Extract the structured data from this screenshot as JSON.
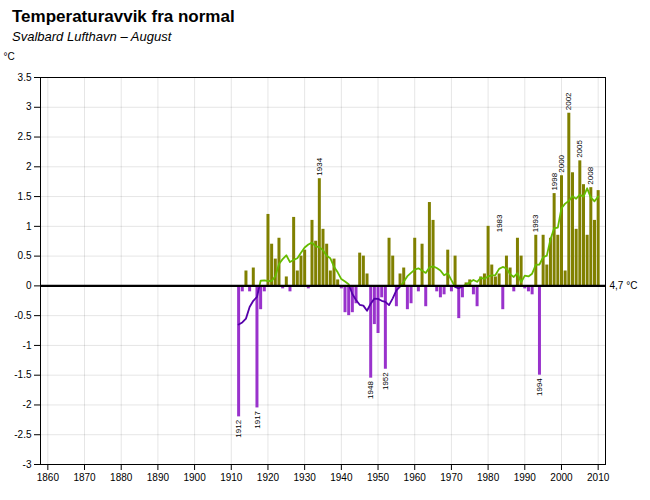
{
  "chart_data": {
    "type": "bar",
    "title": "Temperaturavvik fra normal",
    "subtitle": "Svalbard Lufthavn – August",
    "y_label": "°C",
    "x": [
      1912,
      1913,
      1914,
      1915,
      1916,
      1917,
      1918,
      1919,
      1920,
      1921,
      1922,
      1923,
      1924,
      1925,
      1926,
      1927,
      1928,
      1929,
      1930,
      1931,
      1932,
      1933,
      1934,
      1935,
      1936,
      1937,
      1938,
      1939,
      1940,
      1941,
      1942,
      1943,
      1944,
      1945,
      1946,
      1947,
      1948,
      1949,
      1950,
      1951,
      1952,
      1953,
      1954,
      1955,
      1956,
      1957,
      1958,
      1959,
      1960,
      1961,
      1962,
      1963,
      1964,
      1965,
      1966,
      1967,
      1968,
      1969,
      1970,
      1971,
      1972,
      1973,
      1974,
      1975,
      1976,
      1977,
      1978,
      1979,
      1980,
      1981,
      1982,
      1983,
      1984,
      1985,
      1986,
      1987,
      1988,
      1989,
      1990,
      1991,
      1992,
      1993,
      1994,
      1995,
      1996,
      1997,
      1998,
      1999,
      2000,
      2001,
      2002,
      2003,
      2004,
      2005,
      2006,
      2007,
      2008,
      2009,
      2010
    ],
    "xlim": [
      1858,
      2012
    ],
    "xticks": [
      1860,
      1870,
      1880,
      1890,
      1900,
      1910,
      1920,
      1930,
      1940,
      1950,
      1960,
      1970,
      1980,
      1990,
      2000,
      2010
    ],
    "ylim": [
      -3.0,
      3.5
    ],
    "yticks": [
      -3.0,
      -2.5,
      -2.0,
      -1.5,
      -1.0,
      -0.5,
      0.0,
      0.5,
      1.0,
      1.5,
      2.0,
      2.5,
      3.0,
      3.5
    ],
    "grid": true,
    "series": [
      {
        "type": "bar",
        "values": [
          -2.2,
          -0.1,
          0.25,
          -0.1,
          0.3,
          -2.05,
          -0.4,
          -0.1,
          1.2,
          0.7,
          0.45,
          0.8,
          -0.05,
          0.15,
          -0.1,
          1.15,
          0.25,
          0.5,
          0.6,
          -0.05,
          1.1,
          0.75,
          1.8,
          0.95,
          0.7,
          0.25,
          0.45,
          0.1,
          -0.05,
          -0.45,
          -0.5,
          -0.45,
          -0.3,
          0.55,
          0.5,
          0.2,
          -1.55,
          -0.65,
          -0.8,
          -0.2,
          -1.4,
          0.8,
          0.5,
          -0.35,
          0.2,
          0.3,
          -0.4,
          -0.3,
          0.8,
          -0.1,
          0.7,
          -0.35,
          1.4,
          1.1,
          -0.1,
          -0.2,
          -0.15,
          0.6,
          -0.1,
          0.5,
          -0.55,
          -0.2,
          0.05,
          0.1,
          -0.15,
          -0.35,
          0.15,
          0.2,
          1.0,
          0.35,
          0.15,
          0.2,
          -0.4,
          0.5,
          0.3,
          -0.1,
          0.8,
          0.5,
          -0.05,
          -0.1,
          -0.15,
          0.85,
          -1.5,
          0.85,
          0.35,
          0.8,
          1.55,
          0.85,
          1.85,
          0.25,
          2.9,
          1.9,
          0.95,
          2.1,
          1.7,
          0.85,
          1.65,
          1.1,
          1.6
        ],
        "colors": [
          "#9932CC",
          "#9932CC",
          "#808000",
          "#9932CC",
          "#808000",
          "#9932CC",
          "#9932CC",
          "#9932CC",
          "#808000",
          "#808000",
          "#808000",
          "#808000",
          "#9932CC",
          "#808000",
          "#9932CC",
          "#808000",
          "#808000",
          "#808000",
          "#808000",
          "#9932CC",
          "#808000",
          "#808000",
          "#808000",
          "#808000",
          "#808000",
          "#808000",
          "#808000",
          "#808000",
          "#9932CC",
          "#9932CC",
          "#9932CC",
          "#9932CC",
          "#9932CC",
          "#808000",
          "#808000",
          "#808000",
          "#9932CC",
          "#9932CC",
          "#9932CC",
          "#9932CC",
          "#9932CC",
          "#808000",
          "#808000",
          "#9932CC",
          "#808000",
          "#808000",
          "#9932CC",
          "#9932CC",
          "#808000",
          "#9932CC",
          "#808000",
          "#9932CC",
          "#808000",
          "#808000",
          "#9932CC",
          "#9932CC",
          "#9932CC",
          "#808000",
          "#9932CC",
          "#808000",
          "#9932CC",
          "#9932CC",
          "#808000",
          "#808000",
          "#9932CC",
          "#9932CC",
          "#808000",
          "#808000",
          "#808000",
          "#808000",
          "#808000",
          "#808000",
          "#9932CC",
          "#808000",
          "#808000",
          "#9932CC",
          "#808000",
          "#808000",
          "#9932CC",
          "#9932CC",
          "#9932CC",
          "#808000",
          "#9932CC",
          "#808000",
          "#808000",
          "#808000",
          "#808000",
          "#808000",
          "#808000",
          "#808000",
          "#808000",
          "#808000",
          "#808000",
          "#808000",
          "#808000",
          "#808000",
          "#808000",
          "#808000",
          "#808000"
        ]
      },
      {
        "type": "line",
        "values": [
          -0.65,
          -0.6142857142857143,
          -0.55,
          -0.35555555555555557,
          -0.25,
          -0.18636363636363637,
          0.08636363636363636,
          0.09090909090909091,
          0.08181818181818182,
          0.08181818181818182,
          0.1590909090909091,
          0.36818181818181817,
          0.45,
          0.5136363636363637,
          0.4,
          0.43636363636363634,
          0.4636363636363636,
          0.5545454545454546,
          0.6454545454545455,
          0.6954545454545454,
          0.7272727272727273,
          0.6636363636363636,
          0.65,
          0.6,
          0.5045454545454545,
          0.4636363636363636,
          0.32272727272727275,
          0.22727272727272727,
          0.11363636363636363,
          0.07272727272727272,
          0.02727272727272727,
          -0.13636363636363635,
          -0.23636363636363636,
          -0.3181818181818182,
          -0.33181818181818185,
          -0.41818181818181815,
          -0.3,
          -0.21363636363636362,
          -0.21818181818181817,
          -0.25,
          -0.2681818181818182,
          -0.32272727272727275,
          -0.20909090909090908,
          -0.07727272727272727,
          -0.013636363636363636,
          0.06818181818181818,
          0.16363636363636364,
          0.21818181818181817,
          0.2727272727272727,
          0.29545454545454547,
          0.2590909090909091,
          0.21818181818181817,
          0.3090909090909091,
          0.32727272727272727,
          0.3,
          0.2590909090909091,
          0.17727272727272728,
          0.21363636363636362,
          0.09545454545454546,
          -0.01818181818181818,
          -0.04090909090909091,
          -0.00909090909090909,
          0.022727272727272728,
          0.05909090909090909,
          0.1,
          0.06818181818181818,
          0.13636363636363635,
          0.11818181818181818,
          0.1590909090909091,
          0.17727272727272728,
          0.18181818181818182,
          0.2863636363636364,
          0.3181818181818182,
          0.29545454545454547,
          0.19545454545454546,
          0.15,
          0.21363636363636362,
          0.05909090909090909,
          0.17272727272727273,
          0.1590909090909091,
          0.20454545454545456,
          0.35454545454545455,
          0.3590909090909091,
          0.4818181818181818,
          0.509090909090909,
          0.7818181818181819,
          0.9681818181818181,
          0.9772727272727273,
          1.3045454545454545,
          1.3818181818181818,
          1.4272727272727272,
          1.5045454545454546,
          1.4636363636363636,
          1.5318181818181817,
          1.5,
          1.6388888888888888,
          1.48125,
          1.4214285714285715,
          1.5
        ],
        "colors": [
          "#5500aa",
          "#5500aa",
          "#5500aa",
          "#5500aa",
          "#5500aa",
          "#5500aa",
          "#66bb00",
          "#66bb00",
          "#66bb00",
          "#66bb00",
          "#66bb00",
          "#66bb00",
          "#66bb00",
          "#66bb00",
          "#66bb00",
          "#66bb00",
          "#66bb00",
          "#66bb00",
          "#66bb00",
          "#66bb00",
          "#66bb00",
          "#66bb00",
          "#66bb00",
          "#66bb00",
          "#66bb00",
          "#66bb00",
          "#66bb00",
          "#66bb00",
          "#66bb00",
          "#66bb00",
          "#66bb00",
          "#5500aa",
          "#5500aa",
          "#5500aa",
          "#5500aa",
          "#5500aa",
          "#5500aa",
          "#5500aa",
          "#5500aa",
          "#5500aa",
          "#5500aa",
          "#5500aa",
          "#5500aa",
          "#5500aa",
          "#5500aa",
          "#66bb00",
          "#66bb00",
          "#66bb00",
          "#66bb00",
          "#66bb00",
          "#66bb00",
          "#66bb00",
          "#66bb00",
          "#66bb00",
          "#66bb00",
          "#66bb00",
          "#66bb00",
          "#66bb00",
          "#66bb00",
          "#5500aa",
          "#5500aa",
          "#5500aa",
          "#66bb00",
          "#66bb00",
          "#66bb00",
          "#66bb00",
          "#66bb00",
          "#66bb00",
          "#66bb00",
          "#66bb00",
          "#66bb00",
          "#66bb00",
          "#66bb00",
          "#66bb00",
          "#66bb00",
          "#66bb00",
          "#66bb00",
          "#66bb00",
          "#66bb00",
          "#66bb00",
          "#66bb00",
          "#66bb00",
          "#66bb00",
          "#66bb00",
          "#66bb00",
          "#66bb00",
          "#66bb00",
          "#66bb00",
          "#66bb00",
          "#66bb00",
          "#66bb00",
          "#66bb00",
          "#66bb00",
          "#66bb00",
          "#66bb00",
          "#66bb00",
          "#66bb00",
          "#66bb00",
          "#66bb00"
        ]
      }
    ],
    "reference_line": {
      "y": 0.0,
      "color": "#000000",
      "label": "4,7 °C"
    },
    "annotations": [
      {
        "text": "1912",
        "x": 1912,
        "y": -2.2
      },
      {
        "text": "1917",
        "x": 1917,
        "y": -2.05
      },
      {
        "text": "1934",
        "x": 1934,
        "y": 1.8
      },
      {
        "text": "1948",
        "x": 1948,
        "y": -1.55
      },
      {
        "text": "1952",
        "x": 1952,
        "y": -1.4
      },
      {
        "text": "1994",
        "x": 1994,
        "y": -1.5
      },
      {
        "text": "1998",
        "x": 1998,
        "y": 1.55
      },
      {
        "text": "2002",
        "x": 2002,
        "y": 2.9
      },
      {
        "text": "1983",
        "x": 1983,
        "y": 0.85
      },
      {
        "text": "1993",
        "x": 1993,
        "y": 0.85
      },
      {
        "text": "2000",
        "x": 2000,
        "y": 1.85
      },
      {
        "text": "2005",
        "x": 2005,
        "y": 2.1
      },
      {
        "text": "2008",
        "x": 2008,
        "y": 1.65
      }
    ]
  }
}
